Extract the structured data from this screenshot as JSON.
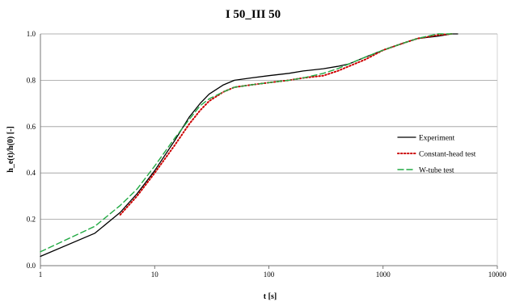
{
  "chart_data": {
    "type": "line",
    "title": "I 50_III 50",
    "xlabel": "t [s]",
    "ylabel": "h_e(t)/h(0) [-]",
    "x_scale": "log",
    "xlim": [
      1,
      10000
    ],
    "ylim": [
      0,
      1
    ],
    "x_ticks": [
      "1",
      "10",
      "100",
      "1000",
      "10000"
    ],
    "y_ticks": [
      "0.0",
      "0.2",
      "0.4",
      "0.6",
      "0.8",
      "1.0"
    ],
    "grid": true,
    "legend_position": "right",
    "series": [
      {
        "name": "Experiment",
        "color": "#000000",
        "style": "solid",
        "x": [
          1,
          3,
          5,
          7,
          10,
          15,
          20,
          25,
          30,
          40,
          50,
          70,
          100,
          150,
          200,
          300,
          400,
          500,
          700,
          1000,
          1500,
          2000,
          3000,
          4000,
          4500
        ],
        "y": [
          0.04,
          0.14,
          0.23,
          0.31,
          0.41,
          0.54,
          0.64,
          0.7,
          0.74,
          0.78,
          0.8,
          0.81,
          0.82,
          0.83,
          0.84,
          0.85,
          0.86,
          0.87,
          0.9,
          0.93,
          0.96,
          0.98,
          0.99,
          1.0,
          1.0
        ]
      },
      {
        "name": "Constant-head test",
        "color": "#cc0000",
        "style": "dotted",
        "x": [
          5,
          7,
          10,
          15,
          20,
          25,
          30,
          40,
          50,
          70,
          100,
          150,
          200,
          300,
          400,
          500,
          700,
          1000,
          1500,
          2000,
          3000,
          4000
        ],
        "y": [
          0.22,
          0.3,
          0.4,
          0.52,
          0.61,
          0.67,
          0.71,
          0.75,
          0.77,
          0.78,
          0.79,
          0.8,
          0.81,
          0.82,
          0.84,
          0.86,
          0.89,
          0.93,
          0.96,
          0.98,
          0.995,
          1.0
        ]
      },
      {
        "name": "W-tube test",
        "color": "#22aa44",
        "style": "dashed",
        "x": [
          1,
          3,
          5,
          7,
          10,
          15,
          20,
          25,
          30,
          40,
          50,
          70,
          100,
          150,
          200,
          300,
          400,
          500,
          700,
          1000,
          1500,
          2000,
          3000,
          4000
        ],
        "y": [
          0.06,
          0.17,
          0.26,
          0.33,
          0.43,
          0.55,
          0.63,
          0.69,
          0.72,
          0.75,
          0.77,
          0.78,
          0.79,
          0.8,
          0.81,
          0.83,
          0.85,
          0.87,
          0.9,
          0.93,
          0.96,
          0.98,
          1.0,
          1.0
        ]
      }
    ]
  }
}
